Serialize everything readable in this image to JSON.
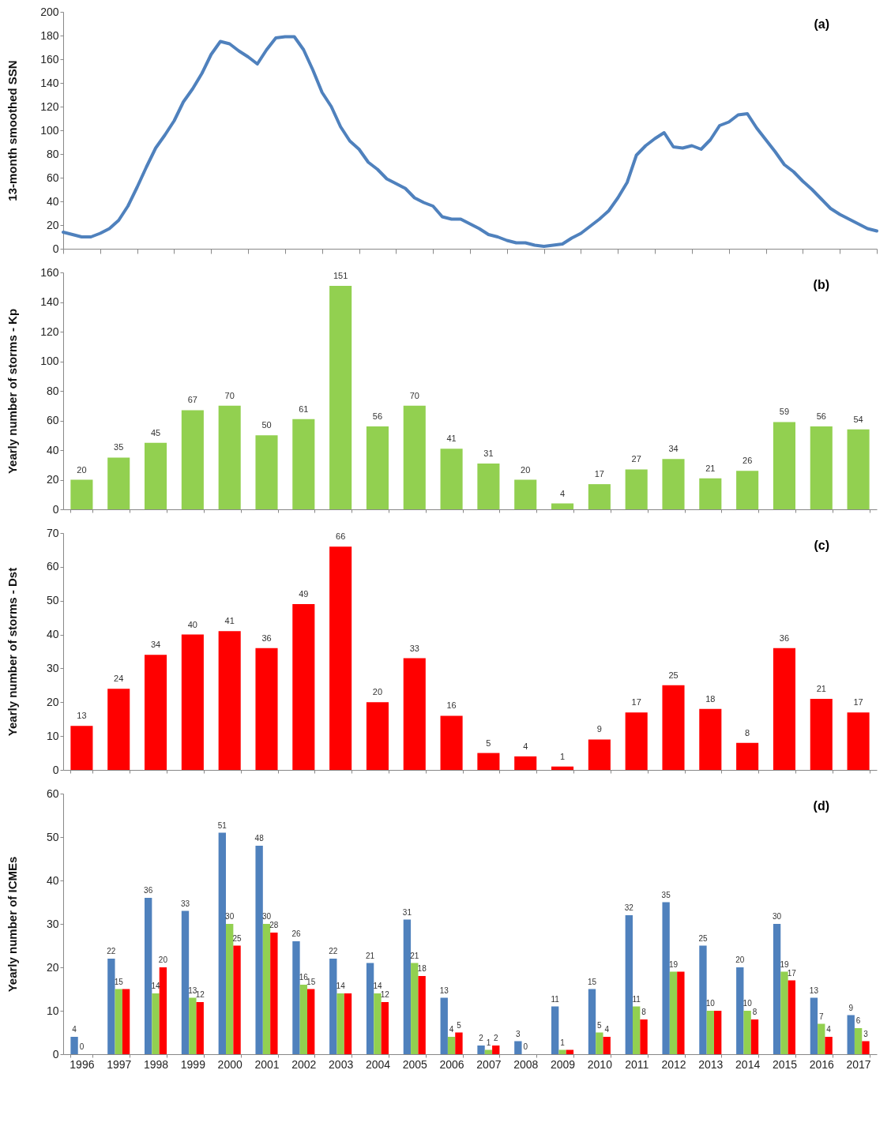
{
  "chart_data": [
    {
      "type": "line",
      "ylabel": "13-month smoothed SSN",
      "color": "#4f81bd",
      "annotations": [
        "(a)"
      ],
      "ylim": [
        0,
        200
      ],
      "yticks": [
        0,
        20,
        40,
        60,
        80,
        100,
        120,
        140,
        160,
        180,
        200
      ],
      "tick_labels": "y",
      "categories": [
        null,
        null,
        null,
        null,
        null,
        null,
        null,
        null,
        null,
        null,
        null,
        null,
        null,
        null,
        null,
        null,
        null,
        null,
        null,
        null,
        null,
        null,
        null,
        null,
        null,
        null,
        null,
        null,
        null,
        null,
        null,
        null,
        null,
        null,
        null,
        null,
        null,
        null,
        null,
        null,
        null,
        null,
        null,
        null,
        null,
        null,
        null,
        null,
        null,
        null,
        null,
        null,
        null,
        null,
        null,
        null,
        null,
        null,
        null,
        null,
        null,
        null,
        null,
        null,
        null,
        null,
        null,
        null,
        null,
        null,
        null,
        null,
        null,
        null,
        null,
        null,
        null,
        null,
        null,
        null,
        null,
        null,
        null,
        null,
        null,
        null,
        null,
        null,
        null
      ],
      "values": [
        14,
        12,
        10,
        10,
        13,
        17,
        24,
        36,
        52,
        69,
        85,
        96,
        108,
        124,
        135,
        148,
        164,
        175,
        173,
        167,
        162,
        156,
        168,
        178,
        179,
        179,
        168,
        151,
        132,
        120,
        103,
        91,
        84,
        73,
        67,
        59,
        55,
        51,
        43,
        39,
        36,
        27,
        25,
        25,
        21,
        17,
        12,
        10,
        7,
        5,
        5,
        3,
        2,
        3,
        4,
        9,
        13,
        19,
        25,
        32,
        43,
        56,
        79,
        87,
        93,
        98,
        86,
        85,
        87,
        84,
        92,
        104,
        107,
        113,
        114,
        102,
        92,
        82,
        71,
        65,
        57,
        50,
        42,
        34,
        29,
        25,
        21,
        17,
        15
      ]
    },
    {
      "type": "bar",
      "ylabel": "Yearly number of storms - Kp",
      "color": "#92d050",
      "annotations": [
        "(b)"
      ],
      "categories": [
        "1996",
        "1997",
        "1998",
        "1999",
        "2000",
        "2001",
        "2002",
        "2003",
        "2004",
        "2005",
        "2006",
        "2007",
        "2008",
        "2009",
        "2010",
        "2011",
        "2012",
        "2013",
        "2014",
        "2015",
        "2016",
        "2017"
      ],
      "ylim": [
        0,
        160
      ],
      "yticks": [
        0,
        20,
        40,
        60,
        80,
        100,
        120,
        140,
        160
      ],
      "tick_labels": "y",
      "data_labels": true,
      "values": [
        20,
        35,
        45,
        67,
        70,
        50,
        61,
        151,
        56,
        70,
        41,
        31,
        20,
        4,
        17,
        27,
        34,
        21,
        26,
        59,
        56,
        54
      ]
    },
    {
      "type": "bar",
      "ylabel": "Yearly number of storms - Dst",
      "color": "#ff0000",
      "annotations": [
        "(c)"
      ],
      "categories": [
        "1996",
        "1997",
        "1998",
        "1999",
        "2000",
        "2001",
        "2002",
        "2003",
        "2004",
        "2005",
        "2006",
        "2007",
        "2008",
        "2009",
        "2010",
        "2011",
        "2012",
        "2013",
        "2014",
        "2015",
        "2016",
        "2017"
      ],
      "ylim": [
        0,
        70
      ],
      "yticks": [
        0,
        10,
        20,
        30,
        40,
        50,
        60,
        70
      ],
      "tick_labels": "y",
      "data_labels": true,
      "values": [
        13,
        24,
        34,
        40,
        41,
        36,
        49,
        66,
        20,
        33,
        16,
        5,
        4,
        1,
        9,
        17,
        25,
        18,
        8,
        36,
        21,
        17
      ]
    },
    {
      "type": "bar",
      "ylabel": "Yearly number of ICMEs",
      "annotations": [
        "(d)"
      ],
      "categories": [
        "1996",
        "1997",
        "1998",
        "1999",
        "2000",
        "2001",
        "2002",
        "2003",
        "2004",
        "2005",
        "2006",
        "2007",
        "2008",
        "2009",
        "2010",
        "2011",
        "2012",
        "2013",
        "2014",
        "2015",
        "2016",
        "2017"
      ],
      "ylim": [
        0,
        60
      ],
      "yticks": [
        0,
        10,
        20,
        30,
        40,
        50,
        60
      ],
      "series": [
        {
          "color": "#4f81bd",
          "values": [
            4,
            22,
            36,
            33,
            51,
            48,
            26,
            22,
            21,
            31,
            13,
            2,
            3,
            11,
            15,
            32,
            35,
            25,
            20,
            30,
            13,
            9
          ],
          "value_labels": [
            "4",
            "22",
            "36",
            "33",
            "51",
            "48",
            "26",
            "22",
            "21",
            "31",
            "13",
            "2",
            "3",
            "11",
            "15",
            "32",
            "35",
            "25",
            "20",
            "30",
            "13",
            "9"
          ]
        },
        {
          "color": "#92d050",
          "values": [
            0,
            15,
            14,
            13,
            30,
            30,
            16,
            14,
            14,
            21,
            4,
            1,
            0,
            1,
            5,
            11,
            19,
            10,
            10,
            19,
            7,
            6
          ],
          "value_labels": [
            "0",
            "15",
            "14",
            "13",
            "30",
            "30",
            "16",
            "14",
            "14",
            "21",
            "4",
            "1",
            "0",
            "1",
            "5",
            "11",
            "19",
            "10",
            "10",
            "19",
            "7",
            "6"
          ]
        },
        {
          "color": "#ff0000",
          "values": [
            null,
            15,
            20,
            12,
            25,
            28,
            15,
            14,
            12,
            18,
            5,
            2,
            null,
            1,
            4,
            8,
            19,
            10,
            8,
            17,
            4,
            3
          ],
          "value_labels": [
            null,
            null,
            "20",
            "12",
            "25",
            "28",
            "15",
            null,
            "12",
            "18",
            "5",
            "2",
            null,
            null,
            "4",
            "8",
            null,
            null,
            "8",
            "17",
            "4",
            "3"
          ]
        }
      ]
    }
  ]
}
